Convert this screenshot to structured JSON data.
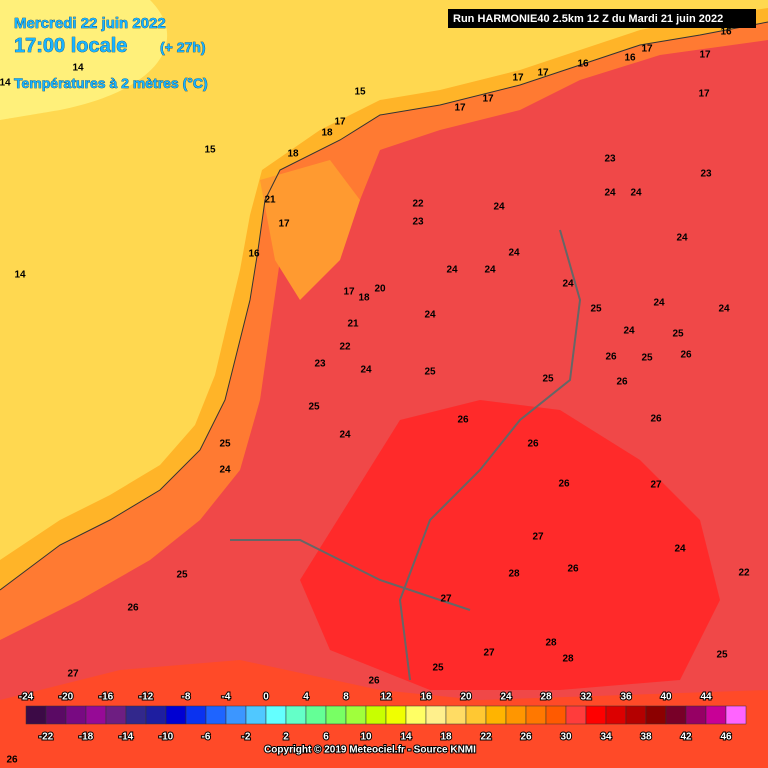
{
  "header": {
    "date": "Mercredi 22 juin 2022",
    "time": "17:00 locale",
    "lead": "(+ 27h)",
    "variable": "Températures à 2 mètres (°C)",
    "run": "Run HARMONIE40 2.5km 12 Z du Mardi 21 juin 2022"
  },
  "map_labels": [
    14,
    14,
    15,
    15,
    14,
    18,
    17,
    18,
    21,
    17,
    16,
    17,
    18,
    20,
    21,
    22,
    23,
    24,
    23,
    24,
    24,
    23,
    24,
    24,
    24,
    24,
    24,
    25,
    24,
    24,
    25,
    26,
    25,
    26,
    25,
    25,
    26,
    26,
    26,
    26,
    27,
    26,
    27,
    26,
    28,
    27,
    28,
    28,
    27,
    26,
    25,
    24,
    24,
    22,
    23,
    24,
    25,
    24,
    25,
    24,
    25,
    26,
    27,
    26,
    22,
    24,
    25,
    17,
    17,
    16,
    16,
    17,
    17,
    17,
    17,
    17,
    16
  ],
  "legend": {
    "labels_top": [
      -24,
      -20,
      -16,
      -12,
      -8,
      -4,
      0,
      4,
      8,
      12,
      16,
      20,
      24,
      28,
      32,
      36,
      40,
      44
    ],
    "labels_bottom": [
      -22,
      -18,
      -14,
      -10,
      -6,
      -2,
      2,
      6,
      10,
      14,
      18,
      22,
      26,
      30,
      34,
      38,
      42,
      46
    ],
    "colors": [
      "#3c0a46",
      "#5a0a64",
      "#780a82",
      "#960a96",
      "#6e1e82",
      "#32288c",
      "#1e1ea0",
      "#0000d2",
      "#0a32f0",
      "#1e64ff",
      "#3c96ff",
      "#50c8ff",
      "#64ffff",
      "#64ffc8",
      "#64ff96",
      "#78ff64",
      "#a0ff3c",
      "#c8ff00",
      "#f0ff00",
      "#ffff64",
      "#fff08c",
      "#ffdc64",
      "#ffc832",
      "#ffb400",
      "#ff9600",
      "#ff7800",
      "#ff5a00",
      "#ff3c3c",
      "#ff0000",
      "#dc0000",
      "#b40000",
      "#8c0000",
      "#780028",
      "#960064",
      "#c80096",
      "#ff64ff"
    ]
  },
  "copyright": "Copyright © 2019 Meteociel.fr - Source KNMI"
}
